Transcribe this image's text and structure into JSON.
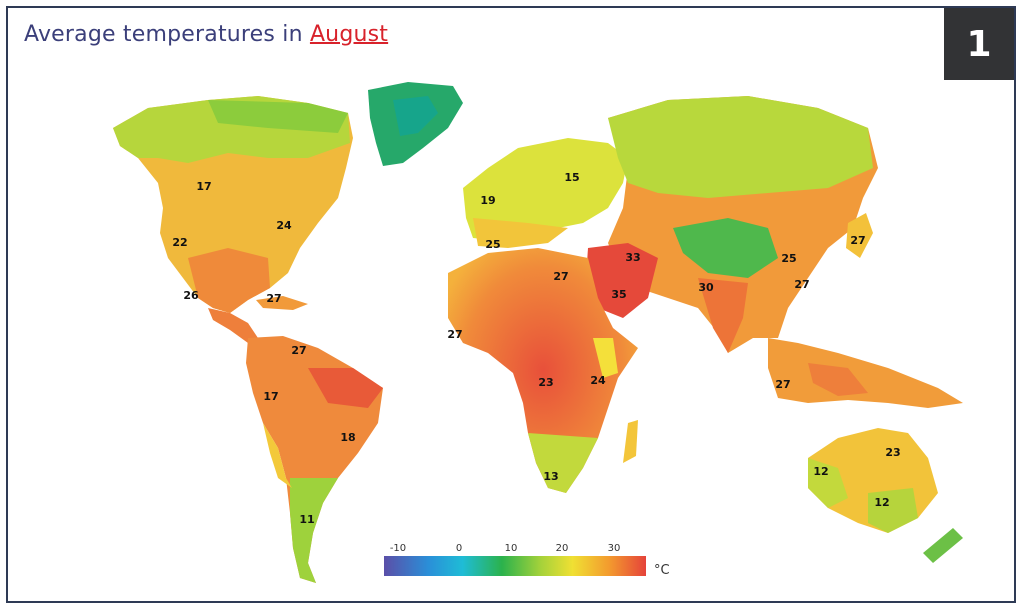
{
  "title": {
    "prefix": "Average temperatures in",
    "month": "August"
  },
  "badge": "1",
  "legend": {
    "ticks": [
      "-10",
      "0",
      "10",
      "20",
      "30"
    ],
    "unit": "°C"
  },
  "labels": [
    {
      "id": "alaska-canada",
      "value": "17"
    },
    {
      "id": "west-us",
      "value": "22"
    },
    {
      "id": "east-us",
      "value": "24"
    },
    {
      "id": "mexico",
      "value": "26"
    },
    {
      "id": "caribbean",
      "value": "27"
    },
    {
      "id": "venezuela",
      "value": "27"
    },
    {
      "id": "peru",
      "value": "17"
    },
    {
      "id": "brazil",
      "value": "18"
    },
    {
      "id": "patagonia",
      "value": "11"
    },
    {
      "id": "western-europe",
      "value": "19"
    },
    {
      "id": "russia",
      "value": "15"
    },
    {
      "id": "mediterranean",
      "value": "25"
    },
    {
      "id": "sahara",
      "value": "27"
    },
    {
      "id": "west-africa",
      "value": "27"
    },
    {
      "id": "middle-east",
      "value": "33"
    },
    {
      "id": "arabia",
      "value": "35"
    },
    {
      "id": "india",
      "value": "30"
    },
    {
      "id": "central-africa",
      "value": "23"
    },
    {
      "id": "east-africa",
      "value": "24"
    },
    {
      "id": "south-africa",
      "value": "13"
    },
    {
      "id": "north-china",
      "value": "25"
    },
    {
      "id": "south-china",
      "value": "27"
    },
    {
      "id": "japan",
      "value": "27"
    },
    {
      "id": "indonesia",
      "value": "27"
    },
    {
      "id": "north-australia",
      "value": "23"
    },
    {
      "id": "west-australia",
      "value": "12"
    },
    {
      "id": "southeast-australia",
      "value": "12"
    }
  ],
  "colors": {
    "frame": "#2e3a55",
    "month": "#d8222b",
    "title": "#3b3f7a",
    "badge_bg": "#323335"
  }
}
